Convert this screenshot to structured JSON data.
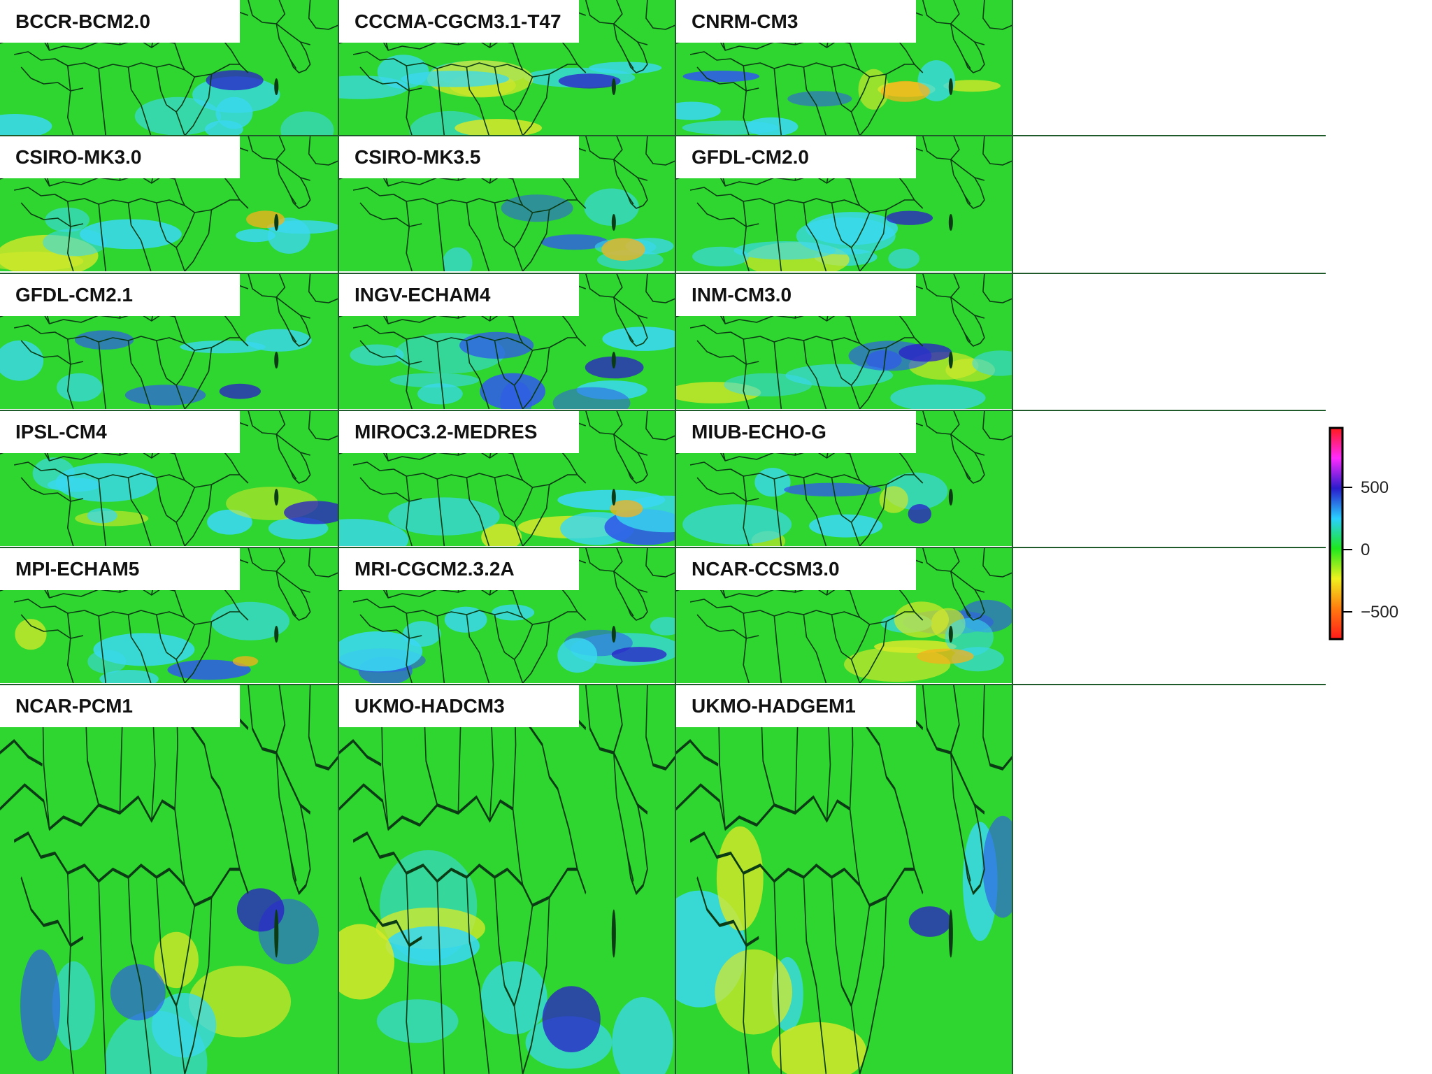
{
  "figure": {
    "rows": 6,
    "cols": 3,
    "models": [
      "BCCR-BCM2.0",
      "CCCMA-CGCM3.1-T47",
      "CNRM-CM3",
      "CSIRO-MK3.0",
      "CSIRO-MK3.5",
      "GFDL-CM2.0",
      "GFDL-CM2.1",
      "INGV-ECHAM4",
      "INM-CM3.0",
      "IPSL-CM4",
      "MIROC3.2-MEDRES",
      "MIUB-ECHO-G",
      "MPI-ECHAM5",
      "MRI-CGCM2.3.2A",
      "NCAR-CCSM3.0",
      "NCAR-PCM1",
      "UKMO-HADCM3",
      "UKMO-HADGEM1"
    ],
    "map_colors": {
      "base": "#2fd62f",
      "boundary": "#0b3b14",
      "cyan": "#3ad8f0",
      "blue": "#2f5be8",
      "darkblue": "#2a1cc8",
      "yellow": "#d6e82a",
      "orange": "#f5b21c"
    },
    "colorbar": {
      "ticks": [
        "500",
        "0",
        "−500"
      ],
      "colors": [
        "#ff1a1a",
        "#ff2bff",
        "#2a1ccc",
        "#2ad0ff",
        "#1ee81e",
        "#f0f01e",
        "#ff7a10",
        "#ff1a1a"
      ]
    }
  }
}
